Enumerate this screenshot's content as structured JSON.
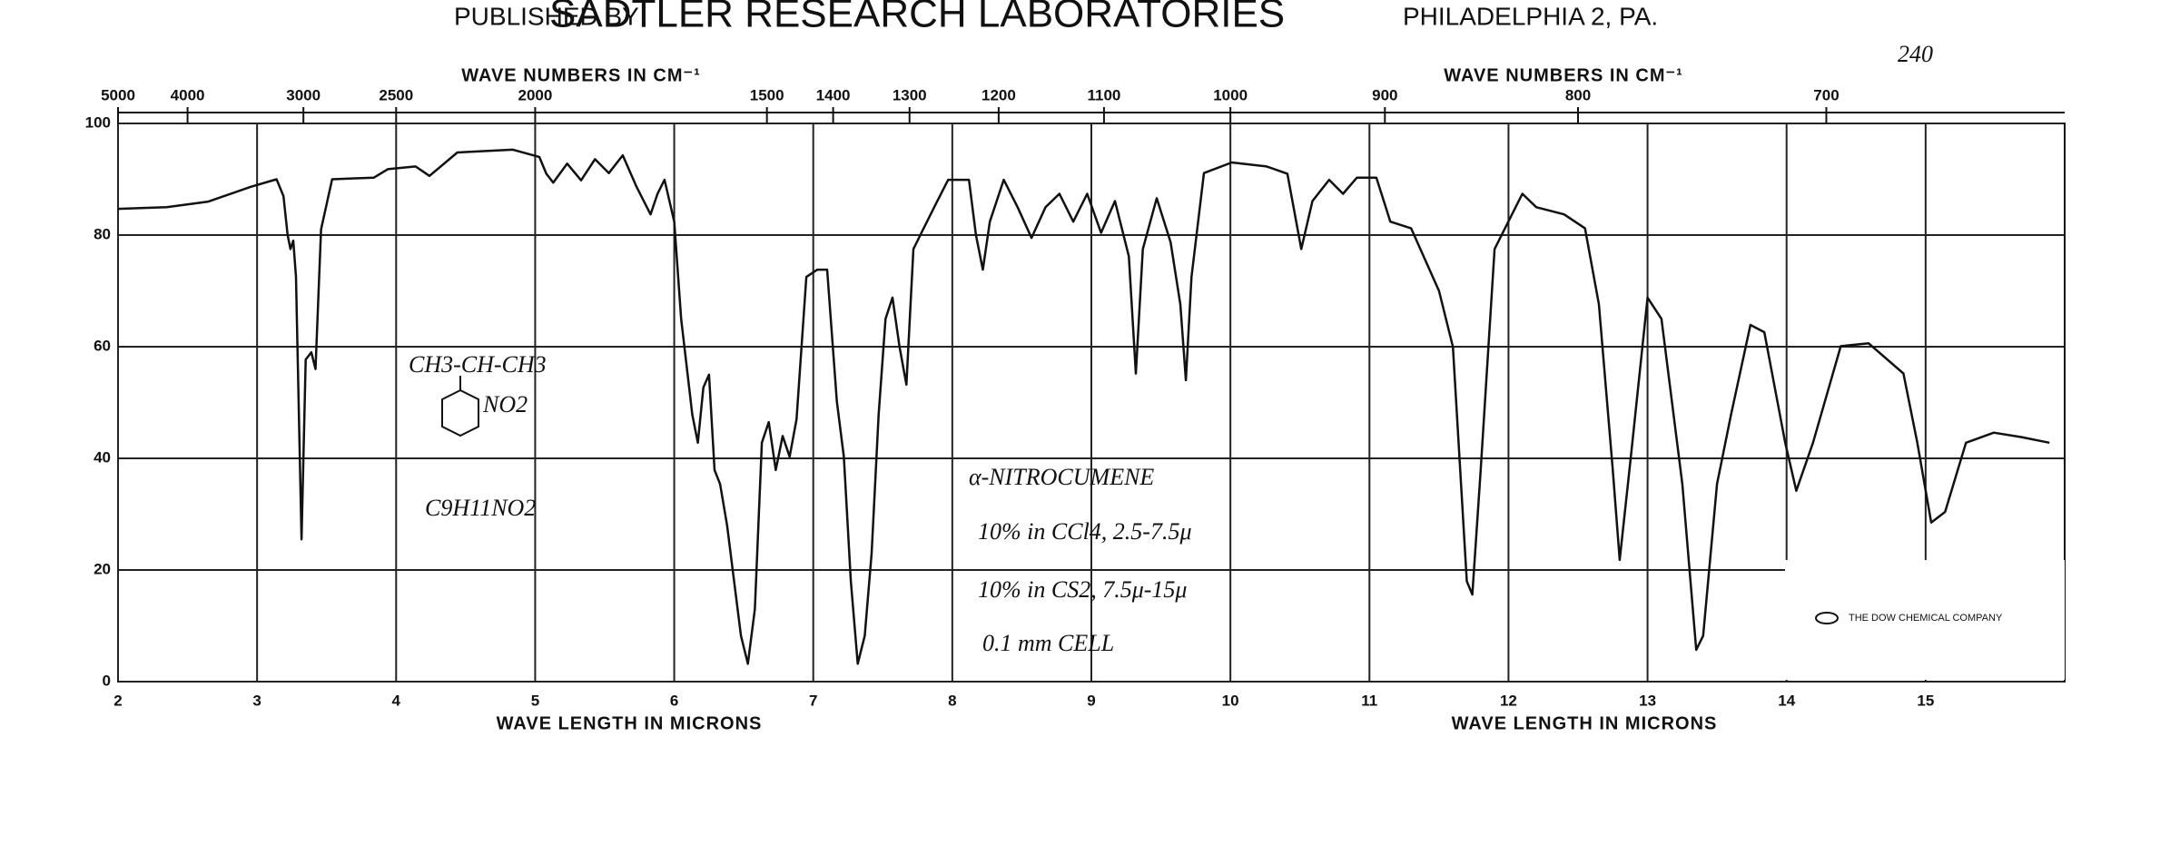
{
  "header": {
    "published_by": "PUBLISHED BY",
    "publisher": "SADTLER RESEARCH LABORATORIES",
    "city": "PHILADELPHIA 2, PA.",
    "sheet_number": "240"
  },
  "annotations": {
    "structure_top": "CH3-CH-CH3",
    "structure_group": "NO2",
    "formula": "C9H11NO2",
    "compound": "α-NITROCUMENE",
    "solvent_1": "10% in CCl4, 2.5-7.5μ",
    "solvent_2": "10% in CS2, 7.5μ-15μ",
    "cell": "0.1 mm CELL",
    "logo": "THE DOW CHEMICAL COMPANY"
  },
  "chart_data": {
    "type": "line",
    "color": "#111111",
    "grid": true,
    "x2labels": [
      "WAVE NUMBERS IN CM⁻¹",
      "WAVE NUMBERS IN CM⁻¹"
    ],
    "xlabels": [
      "WAVE LENGTH IN MICRONS",
      "WAVE LENGTH IN MICRONS"
    ],
    "xlim": [
      2,
      16
    ],
    "xticks": [
      2,
      3,
      4,
      5,
      6,
      7,
      8,
      9,
      10,
      11,
      12,
      13,
      14,
      15
    ],
    "x2ticks": [
      5000,
      4000,
      3000,
      2500,
      2000,
      1500,
      1400,
      1300,
      1200,
      1100,
      1000,
      900,
      800,
      700
    ],
    "ylim": [
      0,
      100
    ],
    "yticks": [
      0,
      20,
      40,
      60,
      80,
      100
    ],
    "x": [
      2.0,
      2.35,
      2.65,
      2.95,
      3.14,
      3.19,
      3.22,
      3.24,
      3.26,
      3.28,
      3.32,
      3.35,
      3.39,
      3.42,
      3.46,
      3.54,
      3.84,
      3.94,
      4.14,
      4.24,
      4.44,
      4.84,
      5.03,
      5.08,
      5.13,
      5.23,
      5.33,
      5.43,
      5.53,
      5.63,
      5.73,
      5.83,
      5.88,
      5.93,
      6.0,
      6.05,
      6.13,
      6.17,
      6.21,
      6.25,
      6.29,
      6.33,
      6.38,
      6.48,
      6.53,
      6.58,
      6.63,
      6.68,
      6.73,
      6.78,
      6.83,
      6.88,
      6.95,
      7.03,
      7.1,
      7.17,
      7.22,
      7.27,
      7.32,
      7.37,
      7.42,
      7.47,
      7.52,
      7.57,
      7.62,
      7.67,
      7.72,
      7.77,
      7.87,
      7.97,
      8.12,
      8.17,
      8.22,
      8.27,
      8.37,
      8.47,
      8.57,
      8.67,
      8.77,
      8.87,
      8.97,
      9.07,
      9.17,
      9.27,
      9.32,
      9.37,
      9.47,
      9.57,
      9.64,
      9.68,
      9.72,
      9.81,
      10.01,
      10.26,
      10.41,
      10.51,
      10.59,
      10.71,
      10.81,
      10.91,
      11.05,
      11.15,
      11.3,
      11.5,
      11.6,
      11.7,
      11.74,
      11.8,
      11.9,
      12.1,
      12.2,
      12.4,
      12.55,
      12.65,
      12.75,
      12.8,
      12.88,
      13.0,
      13.1,
      13.25,
      13.35,
      13.4,
      13.5,
      13.6,
      13.74,
      13.84,
      13.99,
      14.07,
      14.19,
      14.39,
      14.59,
      14.84,
      14.94,
      15.04,
      15.14,
      15.29,
      15.49,
      15.69,
      15.89
    ],
    "values": [
      84.7,
      85,
      86,
      88.6,
      90,
      87,
      80,
      77.5,
      79,
      72.5,
      25.5,
      57.7,
      59,
      56,
      81,
      90,
      90.3,
      91.8,
      92.3,
      90.6,
      94.8,
      95.3,
      94,
      91,
      89.4,
      92.8,
      89.8,
      93.6,
      91.1,
      94.3,
      88.6,
      83.7,
      87.4,
      89.9,
      82.4,
      65,
      47.8,
      42.8,
      52.7,
      55,
      37.9,
      35.4,
      28,
      8.2,
      3.2,
      13,
      42.8,
      46.5,
      37.9,
      44,
      40.3,
      47,
      72.5,
      73.8,
      73.8,
      50.2,
      40.3,
      18,
      3.2,
      8.2,
      23,
      47.8,
      65,
      68.8,
      60,
      53.2,
      77.5,
      80,
      85,
      89.9,
      89.9,
      80,
      73.8,
      82.4,
      89.9,
      85,
      79.5,
      85,
      87.4,
      82.4,
      87.4,
      80.4,
      86.1,
      76.2,
      55.2,
      77.5,
      86.6,
      78.7,
      67.6,
      54,
      72.5,
      91.1,
      93,
      92.3,
      91,
      77.5,
      86.1,
      89.9,
      87.4,
      90.3,
      90.3,
      82.4,
      81.2,
      70,
      60,
      18,
      15.6,
      37.9,
      77.5,
      87.4,
      85,
      83.7,
      81.2,
      67.6,
      37.9,
      21.8,
      40.3,
      68.8,
      65,
      35.4,
      5.7,
      8.2,
      35.4,
      47.8,
      63.9,
      62.6,
      42.8,
      34.2,
      42.8,
      60.1,
      60.6,
      55.2,
      42.8,
      28.5,
      30.4,
      42.8,
      44.6,
      43.8,
      42.8
    ]
  }
}
